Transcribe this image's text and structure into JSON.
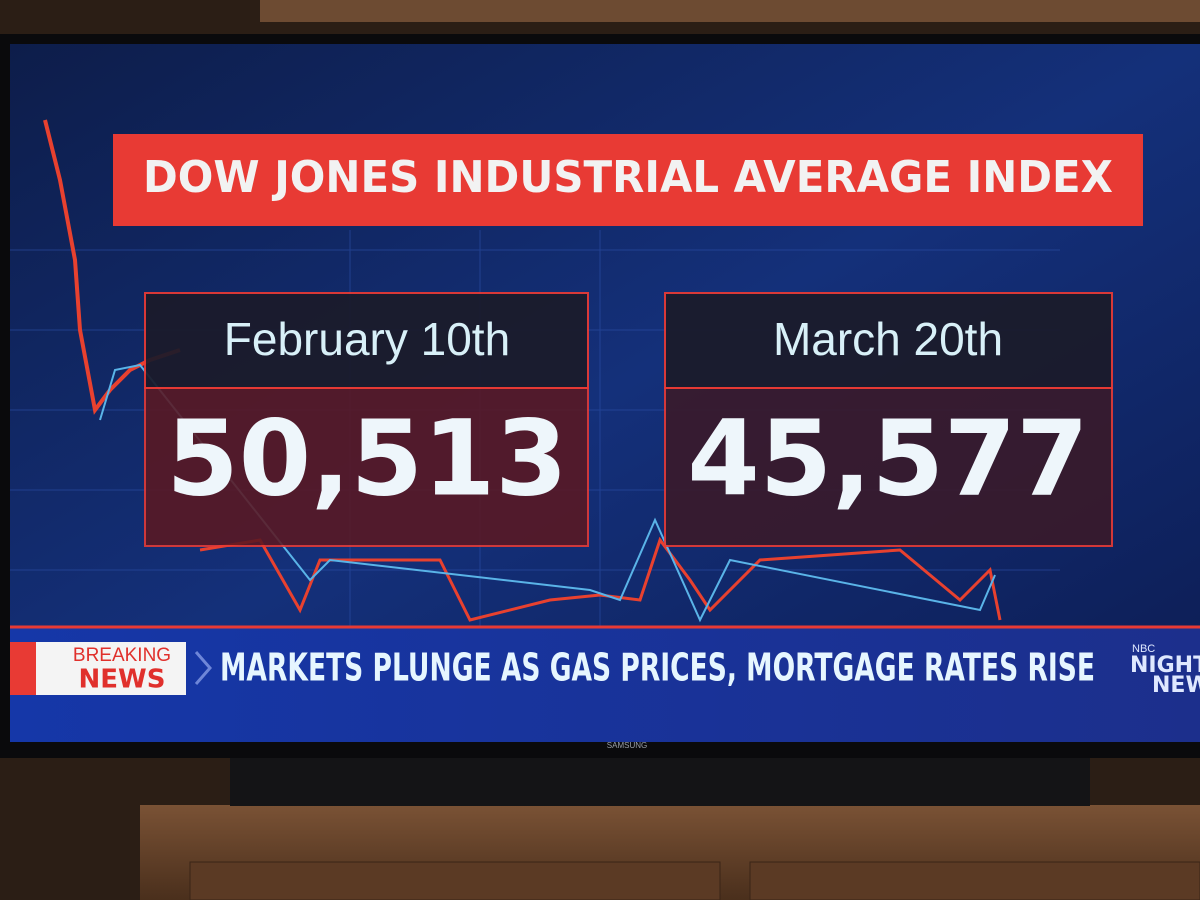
{
  "graphic": {
    "title": "DOW JONES INDUSTRIAL AVERAGE INDEX",
    "panels": [
      {
        "date": "February 10th",
        "value": "50,513"
      },
      {
        "date": "March 20th",
        "value": "45,577"
      }
    ]
  },
  "ticker": {
    "badge_top": "BREAKING",
    "badge_bottom": "NEWS",
    "headline": "MARKETS PLUNGE AS GAS PRICES, MORTGAGE RATES RISE",
    "logo": [
      "NBC",
      "NIGHTLY",
      "NEWS"
    ]
  },
  "tv": {
    "brand": "SAMSUNG"
  }
}
